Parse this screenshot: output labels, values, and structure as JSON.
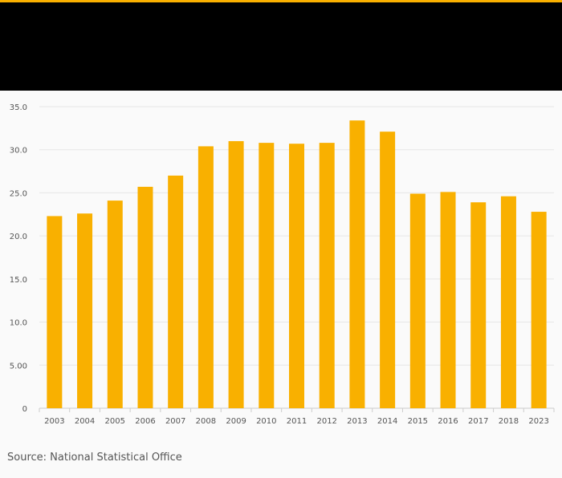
{
  "colors": {
    "accent": "#F9B000",
    "header_background": "#000000",
    "bar": "#F9B000",
    "gridline": "#e6e6e6",
    "axis": "#cccccc",
    "tick_text": "#555555"
  },
  "chart_data": {
    "type": "bar",
    "title": "",
    "xlabel": "",
    "ylabel": "",
    "categories": [
      "2003",
      "2004",
      "2005",
      "2006",
      "2007",
      "2008",
      "2009",
      "2010",
      "2011",
      "2012",
      "2013",
      "2014",
      "2015",
      "2016",
      "2017",
      "2018",
      "2023"
    ],
    "values": [
      22.3,
      22.6,
      24.1,
      25.7,
      27.0,
      30.4,
      31.0,
      30.8,
      30.7,
      30.8,
      33.4,
      32.1,
      24.9,
      25.1,
      23.9,
      24.6,
      22.8
    ],
    "ylim": [
      0,
      35
    ],
    "yticks": [
      0,
      5,
      10,
      15,
      20,
      25,
      30,
      35
    ],
    "ytick_labels": [
      "0",
      "5.00",
      "10.0",
      "15.0",
      "20.0",
      "25.0",
      "30.0",
      "35.0"
    ],
    "grid": true,
    "legend": "none"
  },
  "footer": {
    "source": "Source: National Statistical Office"
  }
}
